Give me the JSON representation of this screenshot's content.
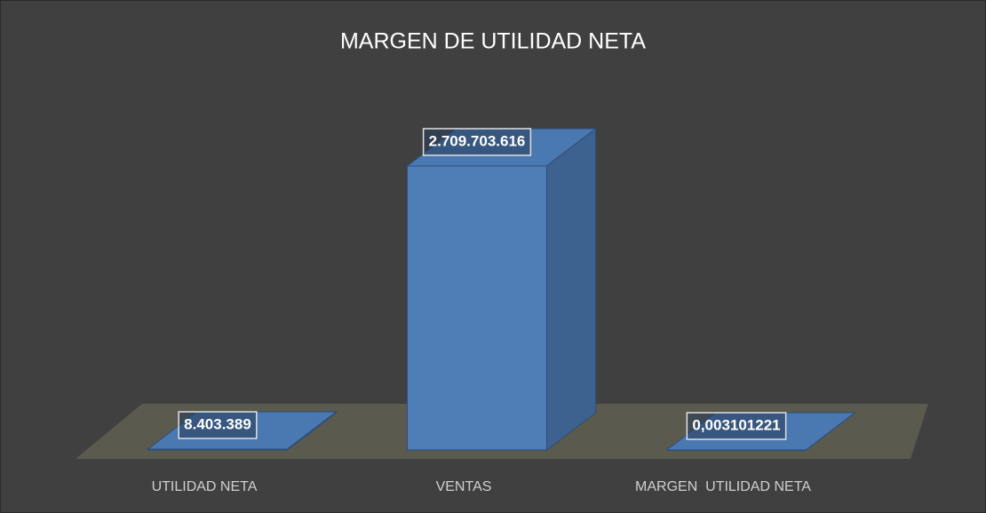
{
  "chart_data": {
    "type": "bar3d",
    "title": "MARGEN DE UTILIDAD NETA",
    "categories": [
      "UTILIDAD NETA",
      "VENTAS",
      "MARGEN  UTILIDAD NETA"
    ],
    "values": [
      8403389,
      2709703616,
      0.003101221
    ],
    "value_labels": [
      "8.403.389",
      "2.709.703.616",
      "0,003101221"
    ],
    "color": "#4f7db6"
  }
}
